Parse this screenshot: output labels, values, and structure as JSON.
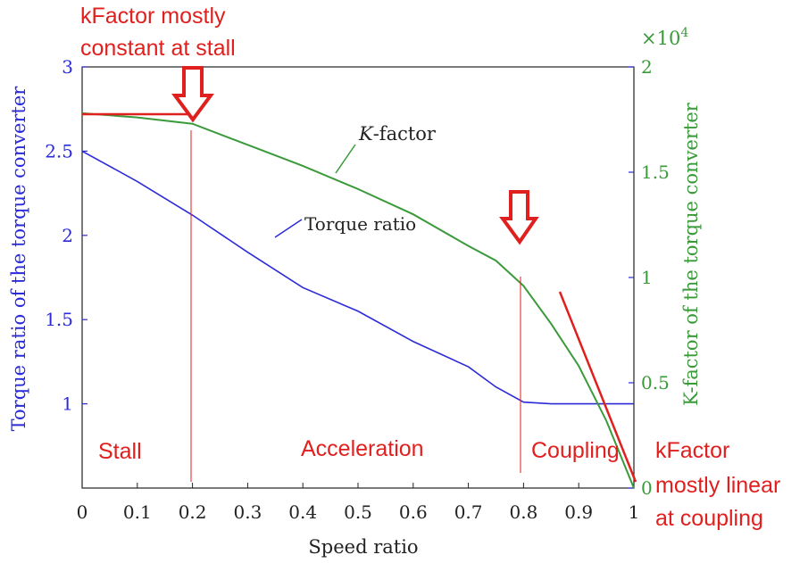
{
  "chart_data": {
    "type": "line",
    "xlabel": "Speed ratio",
    "ylabel_left": "Torque ratio of the torque converter",
    "ylabel_right": "K-factor of the torque converter",
    "x_ticks": [
      "0",
      "0.1",
      "0.2",
      "0.3",
      "0.4",
      "0.5",
      "0.6",
      "0.7",
      "0.8",
      "0.9",
      "1"
    ],
    "y_left_ticks": [
      "1",
      "1.5",
      "2",
      "2.5",
      "3"
    ],
    "y_right_ticks": [
      "0",
      "0.5",
      "1",
      "1.5",
      "2"
    ],
    "y_right_multiplier": "×10",
    "y_right_multiplier_exp": "4",
    "xlim": [
      0,
      1
    ],
    "ylim_left": [
      0.5,
      3
    ],
    "ylim_right": [
      0,
      20000
    ],
    "grid": false,
    "series": [
      {
        "name": "Torque ratio",
        "axis": "left",
        "color": "#2b2bd8",
        "x": [
          0,
          0.1,
          0.2,
          0.3,
          0.4,
          0.5,
          0.6,
          0.7,
          0.75,
          0.8,
          0.85,
          0.9,
          1.0
        ],
        "y": [
          2.5,
          2.32,
          2.12,
          1.9,
          1.69,
          1.55,
          1.37,
          1.22,
          1.1,
          1.01,
          1.0,
          1.0,
          1.0
        ]
      },
      {
        "name": "K-factor",
        "axis": "right",
        "color": "#3a9a3a",
        "x": [
          0,
          0.1,
          0.2,
          0.3,
          0.4,
          0.5,
          0.6,
          0.7,
          0.75,
          0.8,
          0.85,
          0.9,
          0.95,
          1.0
        ],
        "y": [
          17800,
          17600,
          17300,
          16300,
          15300,
          14200,
          13000,
          11500,
          10800,
          9600,
          7800,
          5800,
          3200,
          0
        ]
      }
    ],
    "series_labels": {
      "torque_prefix": "",
      "torque_text": "Torque ratio",
      "k_italic": "K",
      "k_rest": "-factor"
    },
    "annotations": {
      "title_line1": "kFactor mostly",
      "title_line2": "constant at stall",
      "note_line1": "kFactor",
      "note_line2": "mostly linear",
      "note_line3": "at coupling",
      "region_stall": "Stall",
      "region_acceleration": "Acceleration",
      "region_coupling": "Coupling",
      "annotation_color": "#e0201e"
    }
  }
}
